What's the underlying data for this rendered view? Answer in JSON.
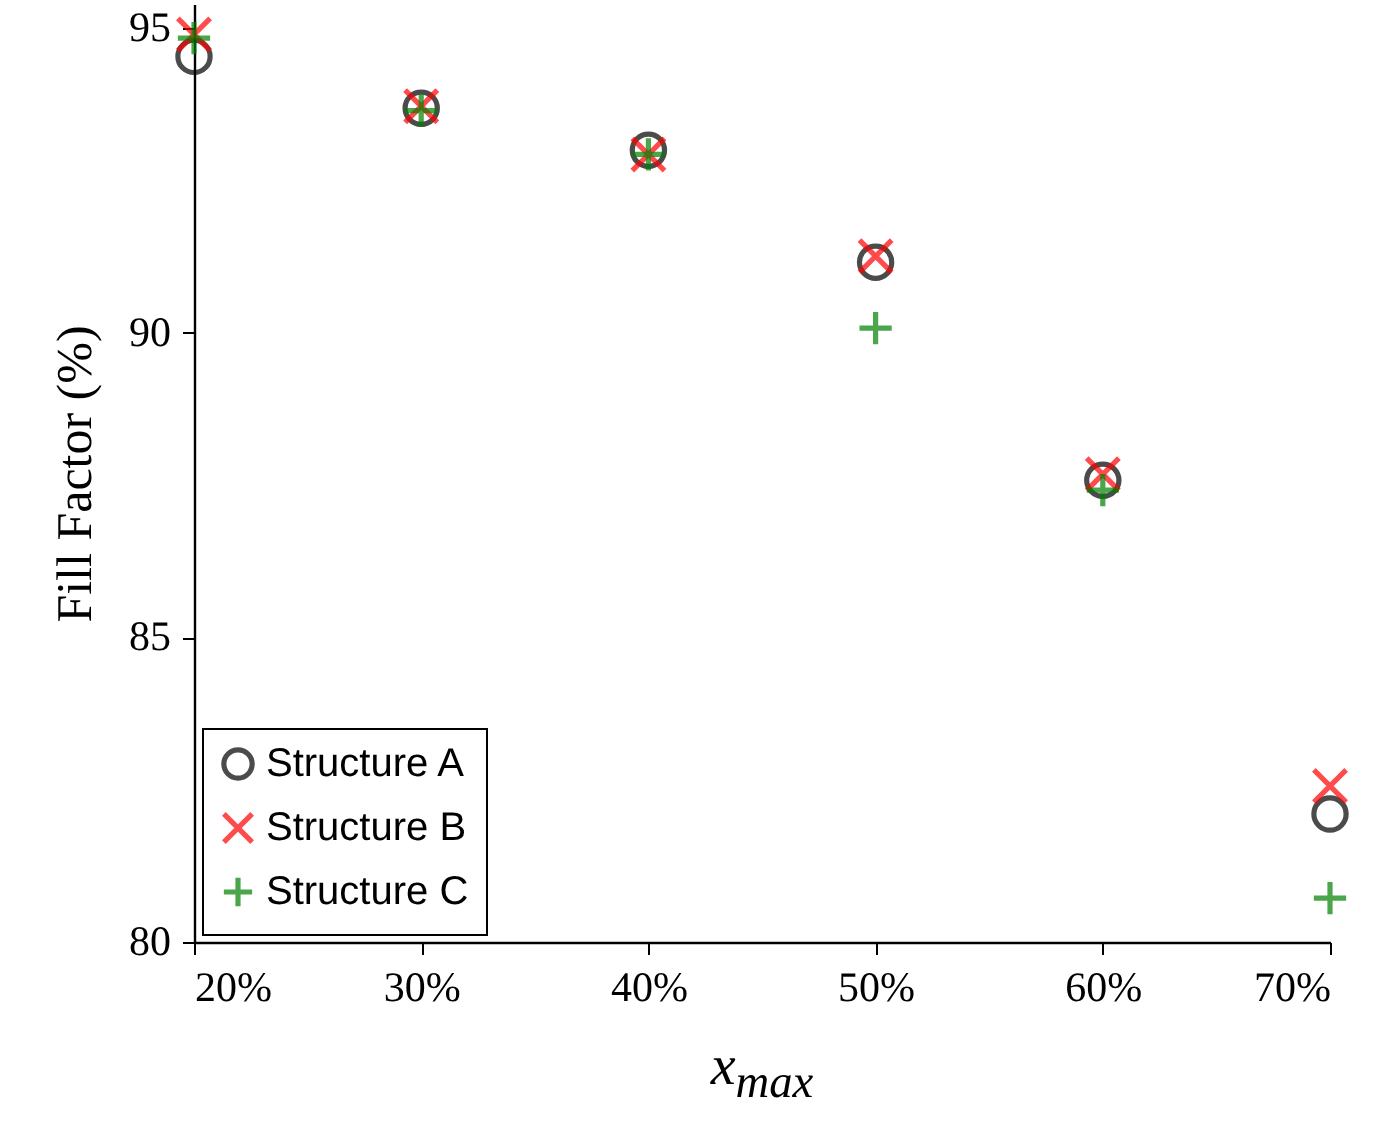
{
  "chart_data": {
    "type": "scatter",
    "xlabel": "x$_{max}$",
    "ylabel": "Fill Factor (%)",
    "x": [
      20,
      30,
      40,
      50,
      60,
      70
    ],
    "xlim": [
      20,
      70
    ],
    "xticks": [
      {
        "value": 20,
        "label": "20%"
      },
      {
        "value": 30,
        "label": "30%"
      },
      {
        "value": 40,
        "label": "40%"
      },
      {
        "value": 50,
        "label": "50%"
      },
      {
        "value": 60,
        "label": "60%"
      },
      {
        "value": 70,
        "label": "70%"
      }
    ],
    "ylim": [
      80,
      95.4
    ],
    "yticks": [
      80,
      85,
      90,
      95
    ],
    "grid": false,
    "legend": "bottom left",
    "series": [
      {
        "name": "Structure A",
        "color": "#000000",
        "marker": "circle",
        "values": [
          94.54,
          93.69,
          93.0,
          91.16,
          87.58,
          82.1
        ]
      },
      {
        "name": "Structure B",
        "color": "#ff0000",
        "marker": "x",
        "values": [
          94.9,
          93.72,
          92.93,
          91.26,
          87.68,
          82.56
        ]
      },
      {
        "name": "Structure C",
        "color": "#008000",
        "marker": "cross",
        "values": [
          94.84,
          93.65,
          92.93,
          90.08,
          87.42,
          80.72
        ]
      }
    ]
  }
}
